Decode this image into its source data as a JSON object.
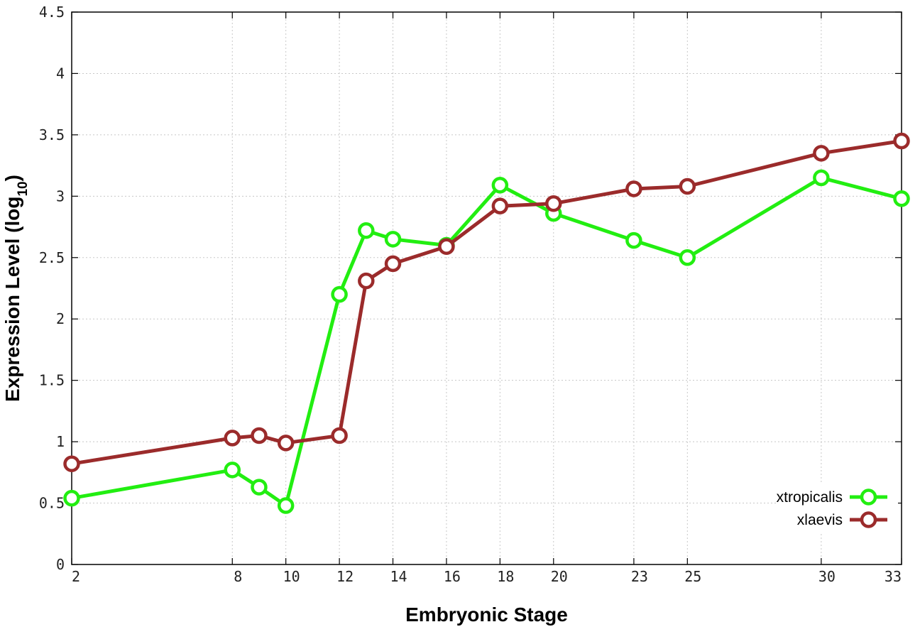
{
  "chart_data": {
    "type": "line",
    "title": "",
    "xlabel": "Embryonic Stage",
    "ylabel_main": "Expression Level (log",
    "ylabel_sub": "10",
    "ylabel_close": ")",
    "x": [
      2,
      8,
      9,
      10,
      12,
      13,
      14,
      16,
      18,
      20,
      23,
      25,
      30,
      33
    ],
    "xticks": [
      {
        "value": 2,
        "label": "2"
      },
      {
        "value": 8,
        "label": "8"
      },
      {
        "value": 10,
        "label": "10"
      },
      {
        "value": 12,
        "label": "12"
      },
      {
        "value": 14,
        "label": "14"
      },
      {
        "value": 16,
        "label": "16"
      },
      {
        "value": 18,
        "label": "18"
      },
      {
        "value": 20,
        "label": "20"
      },
      {
        "value": 23,
        "label": "23"
      },
      {
        "value": 25,
        "label": "25"
      },
      {
        "value": 30,
        "label": "30"
      },
      {
        "value": 33,
        "label": "33"
      }
    ],
    "yticks": [
      {
        "value": 0,
        "label": "0"
      },
      {
        "value": 0.5,
        "label": "0.5"
      },
      {
        "value": 1,
        "label": "1"
      },
      {
        "value": 1.5,
        "label": "1.5"
      },
      {
        "value": 2,
        "label": "2"
      },
      {
        "value": 2.5,
        "label": "2.5"
      },
      {
        "value": 3,
        "label": "3"
      },
      {
        "value": 3.5,
        "label": "3.5"
      },
      {
        "value": 4,
        "label": "4"
      },
      {
        "value": 4.5,
        "label": "4.5"
      }
    ],
    "xlim": [
      2,
      33
    ],
    "ylim": [
      0,
      4.5
    ],
    "grid": true,
    "legend_position": "bottom-right",
    "series": [
      {
        "name": "xtropicalis",
        "color": "#22ee11",
        "values": [
          0.54,
          0.77,
          0.63,
          0.48,
          2.2,
          2.72,
          2.65,
          2.6,
          3.09,
          2.86,
          2.64,
          2.5,
          3.15,
          2.98
        ]
      },
      {
        "name": "xlaevis",
        "color": "#9b2b2b",
        "values": [
          0.82,
          1.03,
          1.05,
          0.99,
          1.05,
          2.31,
          2.45,
          2.59,
          2.92,
          2.94,
          3.06,
          3.08,
          3.35,
          3.45
        ]
      }
    ]
  }
}
